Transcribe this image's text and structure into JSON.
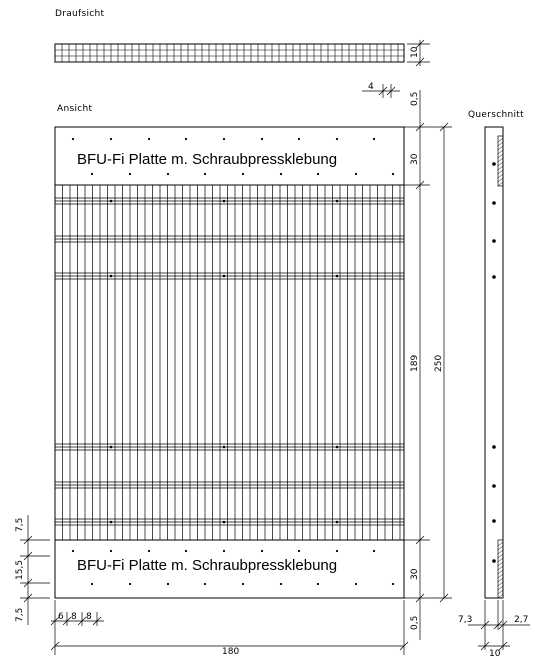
{
  "view_labels": {
    "top_view": "Draufsicht",
    "elevation": "Ansicht",
    "section": "Querschnitt"
  },
  "plate_labels": {
    "top_plate": "BFU-Fi Platte m. Schraubpressklebung",
    "bottom_plate": "BFU-Fi Platte m. Schraubpressklebung"
  },
  "dimensions": {
    "top_view_height": "10",
    "top_view_width": "4",
    "offset_top": "0,5",
    "plate_top": "30",
    "middle": "189",
    "total": "250",
    "plate_bottom": "30",
    "offset_bottom": "0,5",
    "overall_width": "180",
    "left_a": "7,5",
    "left_b": "15,5",
    "left_c": "7,5",
    "bottom_a": "6",
    "bottom_b": "8",
    "bottom_c": "8",
    "section_a": "7,3",
    "section_b": "2,7",
    "section_c": "10"
  }
}
